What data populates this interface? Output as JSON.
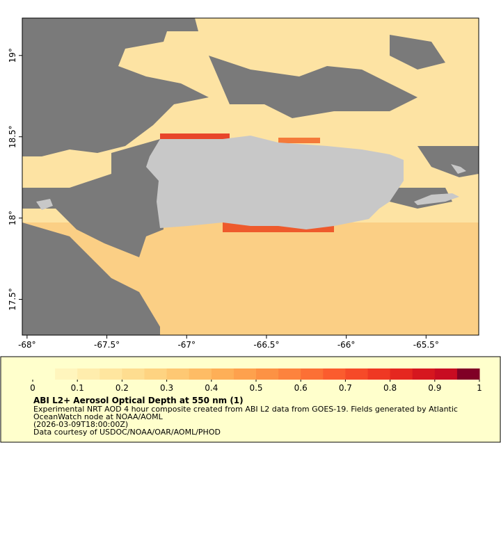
{
  "chart_data": {
    "type": "map",
    "xlim": [
      -68.03,
      -65.17
    ],
    "ylim": [
      17.28,
      19.23
    ],
    "xticks": [
      {
        "value": -68,
        "label": "-68°"
      },
      {
        "value": -67.5,
        "label": "-67.5°"
      },
      {
        "value": -67,
        "label": "-67°"
      },
      {
        "value": -66.5,
        "label": "-66.5°"
      },
      {
        "value": -66,
        "label": "-66°"
      },
      {
        "value": -65.5,
        "label": "-65.5°"
      }
    ],
    "yticks": [
      {
        "value": 17.5,
        "label": "17.5°"
      },
      {
        "value": 18,
        "label": "18°"
      },
      {
        "value": 18.5,
        "label": "18.5°"
      },
      {
        "value": 19,
        "label": "19°"
      }
    ],
    "colorbar": {
      "lim": [
        0,
        1
      ],
      "ticks": [
        0,
        0.1,
        0.2,
        0.3,
        0.4,
        0.5,
        0.6,
        0.7,
        0.8,
        0.9,
        1
      ],
      "colors": [
        "#ffffcc",
        "#fff5bd",
        "#ffedad",
        "#ffe69f",
        "#fedd90",
        "#fed381",
        "#fec873",
        "#febc65",
        "#feaf57",
        "#fea14d",
        "#fd9244",
        "#fd833d",
        "#fc7035",
        "#fb5c2e",
        "#f64a28",
        "#ef3823",
        "#e52720",
        "#d6171f",
        "#c80c22",
        "#800026"
      ]
    },
    "title": "ABI L2+ Aerosol Optical Depth at 550 nm (1)",
    "description": [
      "Experimental NRT AOD 4 hour composite created from ABI L2 data from GOES-19. Fields generated by Atlantic",
      "OceanWatch node at NOAA/AOML",
      "(2026-03-09T18:00:00Z)",
      "Data courtesy of USDOC/NOAA/OAR/AOML/PHOD"
    ]
  }
}
